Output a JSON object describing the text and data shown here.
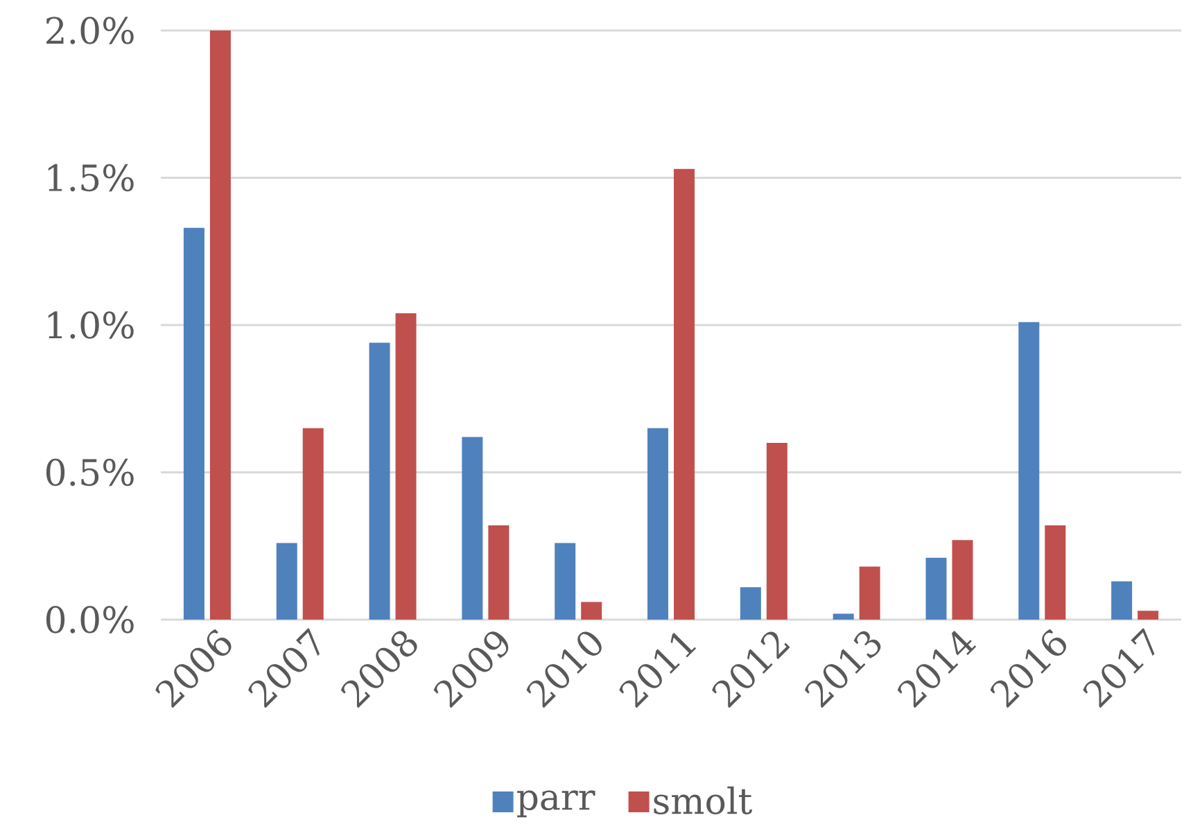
{
  "chart_data": {
    "type": "bar",
    "categories": [
      "2006",
      "2007",
      "2008",
      "2009",
      "2010",
      "2011",
      "2012",
      "2013",
      "2014",
      "2016",
      "2017"
    ],
    "series": [
      {
        "name": "parr",
        "color": "#4f81bd",
        "values": [
          1.33,
          0.26,
          0.94,
          0.62,
          0.26,
          0.65,
          0.11,
          0.02,
          0.21,
          1.01,
          0.13
        ]
      },
      {
        "name": "smolt",
        "color": "#c0504d",
        "values": [
          2.0,
          0.65,
          1.04,
          0.32,
          0.06,
          1.53,
          0.6,
          0.18,
          0.27,
          0.32,
          0.03
        ]
      }
    ],
    "ylim": [
      0,
      2
    ],
    "yticks": [
      {
        "value": 0,
        "label": "0.0%"
      },
      {
        "value": 0.5,
        "label": "0.5%"
      },
      {
        "value": 1,
        "label": "1.0%"
      },
      {
        "value": 1.5,
        "label": "1.5%"
      },
      {
        "value": 2,
        "label": "2.0%"
      }
    ],
    "grid": "y",
    "legend": "bottom"
  }
}
